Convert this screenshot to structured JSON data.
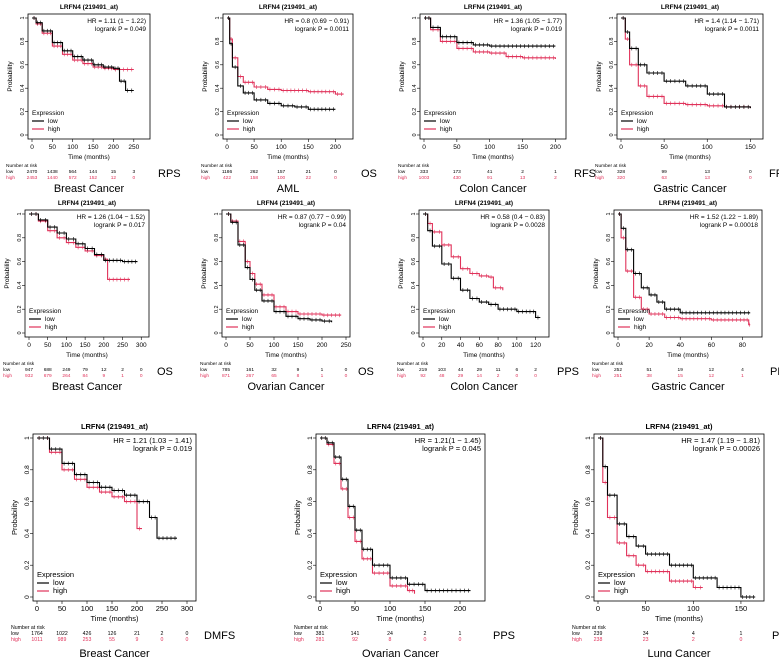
{
  "figure": {
    "gene_probe": "LRFN4 (219491_at)",
    "x_label": "Time (months)",
    "y_label": "Probability",
    "legend_title": "Expression",
    "risk_label": "Number at risk"
  },
  "colors": {
    "low": "#000000",
    "high": "#e0325a"
  },
  "chart_data": [
    {
      "id": "p1",
      "type": "line",
      "title": "LRFN4 (219491_at)",
      "cancer": "Breast Cancer",
      "endpoint": "RPS",
      "hr": "HR = 1.11 (1 − 1.22)",
      "logrank": "logrank P = 0.049",
      "xlim": [
        0,
        280
      ],
      "xticks": [
        0,
        50,
        100,
        150,
        200,
        250
      ],
      "ylim": [
        0,
        1
      ],
      "yticks": [
        0,
        0.2,
        0.4,
        0.6,
        0.8,
        1
      ],
      "low": {
        "x": [
          0,
          10,
          25,
          50,
          75,
          100,
          125,
          150,
          175,
          200,
          215,
          230,
          250
        ],
        "y": [
          1,
          0.96,
          0.89,
          0.79,
          0.72,
          0.67,
          0.64,
          0.6,
          0.58,
          0.57,
          0.46,
          0.38,
          0.38
        ]
      },
      "high": {
        "x": [
          0,
          10,
          25,
          50,
          75,
          100,
          125,
          150,
          175,
          200,
          250
        ],
        "y": [
          1,
          0.95,
          0.87,
          0.76,
          0.69,
          0.64,
          0.61,
          0.58,
          0.57,
          0.56,
          0.56
        ]
      },
      "risk": {
        "times": [
          "0",
          "50",
          "100",
          "150",
          "200",
          "250"
        ],
        "low": [
          "2470",
          "1438",
          "564",
          "144",
          "15",
          "3"
        ],
        "high": [
          "2453",
          "1440",
          "572",
          "152",
          "12",
          "0"
        ]
      }
    },
    {
      "id": "p2",
      "type": "line",
      "title": "LRFN4 (219491_at)",
      "cancer": "AML",
      "endpoint": "OS",
      "hr": "HR = 0.8 (0.69 − 0.91)",
      "logrank": "logrank P = 0.0011",
      "xlim": [
        0,
        225
      ],
      "xticks": [
        0,
        50,
        100,
        150,
        200
      ],
      "ylim": [
        0,
        1
      ],
      "yticks": [
        0,
        0.2,
        0.4,
        0.6,
        0.8,
        1
      ],
      "low": {
        "x": [
          0,
          5,
          10,
          20,
          30,
          50,
          75,
          100,
          125,
          150,
          200
        ],
        "y": [
          1,
          0.78,
          0.58,
          0.42,
          0.36,
          0.3,
          0.27,
          0.25,
          0.24,
          0.22,
          0.22
        ]
      },
      "high": {
        "x": [
          0,
          5,
          10,
          20,
          30,
          50,
          75,
          100,
          150,
          200,
          215
        ],
        "y": [
          1,
          0.82,
          0.66,
          0.5,
          0.45,
          0.41,
          0.39,
          0.38,
          0.37,
          0.35,
          0.35
        ]
      },
      "risk": {
        "times": [
          "0",
          "50",
          "100",
          "150",
          "200"
        ],
        "low": [
          "1186",
          "262",
          "157",
          "21",
          "0"
        ],
        "high": [
          "422",
          "158",
          "100",
          "22",
          "0"
        ]
      }
    },
    {
      "id": "p3",
      "type": "line",
      "title": "LRFN4 (219491_at)",
      "cancer": "Colon Cancer",
      "endpoint": "RFS",
      "hr": "HR = 1.36 (1.05 − 1.77)",
      "logrank": "logrank P = 0.019",
      "xlim": [
        0,
        210
      ],
      "xticks": [
        0,
        50,
        100,
        150,
        200
      ],
      "ylim": [
        0,
        1
      ],
      "yticks": [
        0,
        0.2,
        0.4,
        0.6,
        0.8,
        1
      ],
      "low": {
        "x": [
          0,
          10,
          25,
          50,
          75,
          100,
          150,
          200
        ],
        "y": [
          1,
          0.92,
          0.84,
          0.79,
          0.77,
          0.76,
          0.76,
          0.76
        ]
      },
      "high": {
        "x": [
          0,
          10,
          25,
          50,
          75,
          100,
          125,
          150,
          200
        ],
        "y": [
          1,
          0.9,
          0.8,
          0.74,
          0.71,
          0.7,
          0.67,
          0.66,
          0.65
        ]
      },
      "risk": {
        "times": [
          "0",
          "50",
          "100",
          "150",
          "200"
        ],
        "low": [
          "333",
          "173",
          "41",
          "2",
          "1"
        ],
        "high": [
          "1003",
          "430",
          "91",
          "13",
          "2"
        ]
      }
    },
    {
      "id": "p4",
      "type": "line",
      "title": "LRFN4 (219491_at)",
      "cancer": "Gastric Cancer",
      "endpoint": "FP",
      "hr": "HR = 1.4 (1.14 − 1.71)",
      "logrank": "logrank P = 0.0011",
      "xlim": [
        0,
        160
      ],
      "xticks": [
        0,
        50,
        100,
        150
      ],
      "ylim": [
        0,
        1
      ],
      "yticks": [
        0,
        0.2,
        0.4,
        0.6,
        0.8,
        1
      ],
      "low": {
        "x": [
          0,
          5,
          10,
          20,
          30,
          50,
          75,
          100,
          120,
          150
        ],
        "y": [
          1,
          0.88,
          0.74,
          0.6,
          0.53,
          0.46,
          0.42,
          0.35,
          0.24,
          0.23
        ]
      },
      "high": {
        "x": [
          0,
          5,
          10,
          20,
          30,
          50,
          75,
          100,
          120,
          150
        ],
        "y": [
          1,
          0.82,
          0.6,
          0.42,
          0.33,
          0.27,
          0.26,
          0.25,
          0.24,
          0.23
        ]
      },
      "risk": {
        "times": [
          "0",
          "50",
          "100",
          "150"
        ],
        "low": [
          "328",
          "99",
          "13",
          "0"
        ],
        "high": [
          "320",
          "63",
          "13",
          "0"
        ]
      }
    },
    {
      "id": "p5",
      "type": "line",
      "title": "LRFN4 (219491_at)",
      "cancer": "Breast Cancer",
      "endpoint": "OS",
      "hr": "HR = 1.26 (1.04 − 1.52)",
      "logrank": "logrank P = 0.017",
      "xlim": [
        0,
        310
      ],
      "xticks": [
        0,
        50,
        100,
        150,
        200,
        250,
        300
      ],
      "ylim": [
        0,
        1
      ],
      "yticks": [
        0,
        0.2,
        0.4,
        0.6,
        0.8,
        1
      ],
      "low": {
        "x": [
          0,
          25,
          50,
          75,
          100,
          125,
          150,
          175,
          200,
          250,
          290
        ],
        "y": [
          1,
          0.95,
          0.89,
          0.84,
          0.79,
          0.75,
          0.71,
          0.66,
          0.61,
          0.6,
          0.6
        ]
      },
      "high": {
        "x": [
          0,
          25,
          50,
          75,
          100,
          125,
          150,
          175,
          200,
          210,
          270
        ],
        "y": [
          1,
          0.94,
          0.86,
          0.8,
          0.76,
          0.72,
          0.69,
          0.65,
          0.62,
          0.45,
          0.45
        ]
      },
      "risk": {
        "times": [
          "0",
          "50",
          "100",
          "150",
          "200",
          "250",
          "300"
        ],
        "low": [
          "947",
          "688",
          "249",
          "79",
          "12",
          "2",
          "0"
        ],
        "high": [
          "932",
          "679",
          "264",
          "84",
          "9",
          "1",
          "0"
        ]
      }
    },
    {
      "id": "p6",
      "type": "line",
      "title": "LRFN4 (219491_at)",
      "cancer": "Ovarian Cancer",
      "endpoint": "OS",
      "hr": "HR = 0.87 (0.77 − 0.99)",
      "logrank": "logrank P = 0.04",
      "xlim": [
        0,
        250
      ],
      "xticks": [
        0,
        50,
        100,
        150,
        200,
        250
      ],
      "ylim": [
        0,
        1
      ],
      "yticks": [
        0,
        0.2,
        0.4,
        0.6,
        0.8,
        1
      ],
      "low": {
        "x": [
          0,
          10,
          25,
          40,
          50,
          60,
          75,
          100,
          125,
          150,
          175,
          200,
          220
        ],
        "y": [
          1,
          0.93,
          0.74,
          0.55,
          0.45,
          0.36,
          0.27,
          0.18,
          0.14,
          0.12,
          0.11,
          0.1,
          0.09
        ]
      },
      "high": {
        "x": [
          0,
          10,
          25,
          40,
          50,
          60,
          75,
          100,
          125,
          150,
          200,
          240
        ],
        "y": [
          1,
          0.94,
          0.77,
          0.6,
          0.5,
          0.41,
          0.32,
          0.22,
          0.18,
          0.16,
          0.15,
          0.15
        ]
      },
      "risk": {
        "times": [
          "0",
          "50",
          "100",
          "150",
          "200",
          "250"
        ],
        "low": [
          "785",
          "161",
          "32",
          "9",
          "1",
          "0"
        ],
        "high": [
          "871",
          "267",
          "65",
          "8",
          "1",
          "0"
        ]
      }
    },
    {
      "id": "p7",
      "type": "line",
      "title": "LRFN4 (219491_at)",
      "cancer": "Colon Cancer",
      "endpoint": "PPS",
      "hr": "HR = 0.58 (0.4 − 0.83)",
      "logrank": "logrank P = 0.0028",
      "xlim": [
        0,
        130
      ],
      "xticks": [
        0,
        20,
        40,
        60,
        80,
        100,
        120
      ],
      "ylim": [
        0,
        1
      ],
      "yticks": [
        0,
        0.2,
        0.4,
        0.6,
        0.8,
        1
      ],
      "low": {
        "x": [
          0,
          5,
          10,
          20,
          30,
          40,
          50,
          60,
          70,
          80,
          100,
          120,
          125
        ],
        "y": [
          1,
          0.86,
          0.73,
          0.58,
          0.46,
          0.36,
          0.29,
          0.26,
          0.24,
          0.2,
          0.18,
          0.13,
          0.13
        ]
      },
      "high": {
        "x": [
          0,
          5,
          10,
          20,
          30,
          40,
          50,
          60,
          70,
          75,
          85
        ],
        "y": [
          1,
          0.92,
          0.85,
          0.74,
          0.64,
          0.54,
          0.5,
          0.48,
          0.47,
          0.38,
          0.36
        ]
      },
      "risk": {
        "times": [
          "0",
          "20",
          "40",
          "60",
          "80",
          "100",
          "120"
        ],
        "low": [
          "219",
          "103",
          "44",
          "29",
          "11",
          "6",
          "2"
        ],
        "high": [
          "92",
          "48",
          "29",
          "14",
          "2",
          "0",
          "0"
        ]
      }
    },
    {
      "id": "p8",
      "type": "line",
      "title": "LRFN4 (219491_at)",
      "cancer": "Gastric Cancer",
      "endpoint": "PPS",
      "hr": "HR = 1.52 (1.22 − 1.89)",
      "logrank": "logrank P = 0.00018",
      "xlim": [
        0,
        90
      ],
      "xticks": [
        0,
        20,
        40,
        60,
        80
      ],
      "ylim": [
        0,
        1
      ],
      "yticks": [
        0,
        0.2,
        0.4,
        0.6,
        0.8,
        1
      ],
      "low": {
        "x": [
          0,
          2,
          5,
          10,
          15,
          20,
          25,
          30,
          40,
          60,
          85
        ],
        "y": [
          1,
          0.88,
          0.7,
          0.5,
          0.38,
          0.32,
          0.26,
          0.2,
          0.17,
          0.17,
          0.17
        ]
      },
      "high": {
        "x": [
          0,
          2,
          5,
          10,
          15,
          20,
          30,
          40,
          60,
          80,
          84,
          85
        ],
        "y": [
          1,
          0.8,
          0.52,
          0.3,
          0.2,
          0.16,
          0.13,
          0.12,
          0.11,
          0.11,
          0.07,
          0.07
        ]
      },
      "risk": {
        "times": [
          "0",
          "20",
          "40",
          "60",
          "80"
        ],
        "low": [
          "252",
          "51",
          "19",
          "12",
          "4"
        ],
        "high": [
          "251",
          "38",
          "15",
          "12",
          "1"
        ]
      }
    },
    {
      "id": "p9",
      "type": "line",
      "title": "LRFN4 (219491_at)",
      "cancer": "Breast Cancer",
      "endpoint": "DMFS",
      "hr": "HR = 1.21 (1.03 − 1.41)",
      "logrank": "logrank P = 0.019",
      "xlim": [
        0,
        310
      ],
      "xticks": [
        0,
        50,
        100,
        150,
        200,
        250,
        300
      ],
      "ylim": [
        0,
        1
      ],
      "yticks": [
        0,
        0.2,
        0.4,
        0.6,
        0.8,
        1
      ],
      "low": {
        "x": [
          0,
          25,
          50,
          75,
          100,
          125,
          150,
          175,
          200,
          225,
          240,
          280
        ],
        "y": [
          1,
          0.93,
          0.84,
          0.77,
          0.72,
          0.69,
          0.67,
          0.64,
          0.6,
          0.5,
          0.37,
          0.37
        ]
      },
      "high": {
        "x": [
          0,
          25,
          50,
          75,
          100,
          125,
          150,
          175,
          200,
          210
        ],
        "y": [
          1,
          0.91,
          0.8,
          0.74,
          0.69,
          0.66,
          0.63,
          0.6,
          0.43,
          0.43
        ]
      },
      "risk": {
        "times": [
          "0",
          "50",
          "100",
          "150",
          "200",
          "250",
          "300"
        ],
        "low": [
          "1764",
          "1022",
          "426",
          "126",
          "21",
          "2",
          "0"
        ],
        "high": [
          "1011",
          "989",
          "253",
          "55",
          "9",
          "0",
          "0"
        ]
      }
    },
    {
      "id": "p10",
      "type": "line",
      "title": "LRFN4 (219491_at)",
      "cancer": "Ovarian Cancer",
      "endpoint": "PPS",
      "hr": "HR = 1.21(1 − 1.45)",
      "logrank": "logrank P = 0.045",
      "xlim": [
        0,
        230
      ],
      "xticks": [
        0,
        50,
        100,
        150,
        200
      ],
      "ylim": [
        0,
        1
      ],
      "yticks": [
        0,
        0.2,
        0.4,
        0.6,
        0.8,
        1
      ],
      "low": {
        "x": [
          0,
          10,
          20,
          30,
          40,
          50,
          60,
          75,
          100,
          125,
          150,
          215
        ],
        "y": [
          1,
          0.97,
          0.88,
          0.74,
          0.57,
          0.42,
          0.3,
          0.2,
          0.12,
          0.08,
          0.04,
          0.04
        ]
      },
      "high": {
        "x": [
          0,
          10,
          20,
          30,
          40,
          50,
          60,
          75,
          100,
          125,
          135
        ],
        "y": [
          1,
          0.96,
          0.84,
          0.68,
          0.5,
          0.35,
          0.24,
          0.15,
          0.07,
          0.04,
          0.02
        ]
      },
      "risk": {
        "times": [
          "0",
          "50",
          "100",
          "150",
          "200"
        ],
        "low": [
          "381",
          "141",
          "24",
          "2",
          "1"
        ],
        "high": [
          "281",
          "92",
          "8",
          "0",
          "0"
        ]
      }
    },
    {
      "id": "p11",
      "type": "line",
      "title": "LRFN4 (219491_at)",
      "cancer": "Lung Cancer",
      "endpoint": "PPS",
      "hr": "HR = 1.47 (1.19 − 1.81)",
      "logrank": "logrank P = 0.00026",
      "xlim": [
        0,
        170
      ],
      "xticks": [
        0,
        50,
        100,
        150
      ],
      "ylim": [
        0,
        1
      ],
      "yticks": [
        0,
        0.2,
        0.4,
        0.6,
        0.8,
        1
      ],
      "low": {
        "x": [
          0,
          5,
          10,
          20,
          30,
          40,
          50,
          75,
          100,
          125,
          150,
          165
        ],
        "y": [
          1,
          0.82,
          0.64,
          0.46,
          0.38,
          0.32,
          0.27,
          0.2,
          0.12,
          0.06,
          0,
          0
        ]
      },
      "high": {
        "x": [
          0,
          5,
          10,
          20,
          30,
          40,
          50,
          75,
          100,
          110
        ],
        "y": [
          1,
          0.72,
          0.5,
          0.34,
          0.26,
          0.2,
          0.16,
          0.1,
          0.06,
          0.06
        ]
      },
      "risk": {
        "times": [
          "0",
          "50",
          "100",
          "150"
        ],
        "low": [
          "239",
          "34",
          "4",
          "1"
        ],
        "high": [
          "238",
          "23",
          "2",
          "0"
        ]
      }
    }
  ]
}
